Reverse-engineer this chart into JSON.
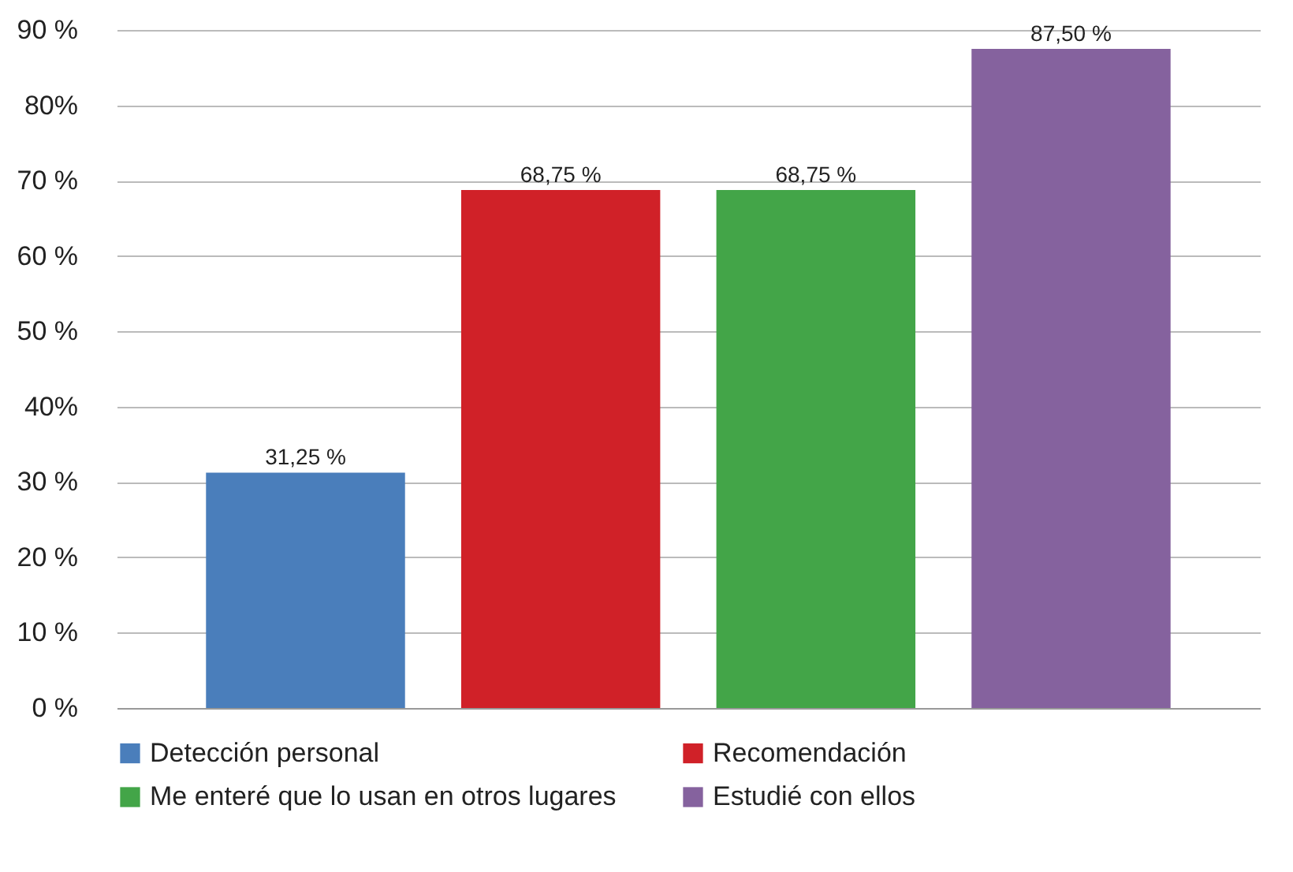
{
  "chart_data": {
    "type": "bar",
    "categories": [
      null,
      null,
      null,
      null
    ],
    "series": [
      {
        "name": "Detección personal",
        "color": "#4a7ebb",
        "values": [
          31.25,
          null,
          null,
          null
        ],
        "value_labels": [
          "31,25 %",
          null,
          null,
          null
        ]
      },
      {
        "name": "Recomendación",
        "color": "#d02128",
        "values": [
          null,
          68.75,
          null,
          null
        ],
        "value_labels": [
          null,
          "68,75 %",
          null,
          null
        ]
      },
      {
        "name": "Me enteré que lo usan en otros lugares",
        "color": "#43a548",
        "values": [
          null,
          null,
          68.75,
          null
        ],
        "value_labels": [
          null,
          null,
          "68,75 %",
          null
        ]
      },
      {
        "name": "Estudié con ellos",
        "color": "#85629e",
        "values": [
          null,
          null,
          null,
          87.5
        ],
        "value_labels": [
          null,
          null,
          null,
          "87,50 %"
        ]
      }
    ],
    "ylim": [
      0,
      90
    ],
    "yticks": [
      {
        "value": 0,
        "label": "0 %"
      },
      {
        "value": 10,
        "label": "10 %"
      },
      {
        "value": 20,
        "label": "20 %"
      },
      {
        "value": 30,
        "label": "30 %"
      },
      {
        "value": 40,
        "label": "40%"
      },
      {
        "value": 50,
        "label": "50 %"
      },
      {
        "value": 60,
        "label": "60 %"
      },
      {
        "value": 70,
        "label": "70 %"
      },
      {
        "value": 80,
        "label": "80%"
      },
      {
        "value": 90,
        "label": "90 %"
      }
    ],
    "grid": "y",
    "legend": "bottom"
  }
}
